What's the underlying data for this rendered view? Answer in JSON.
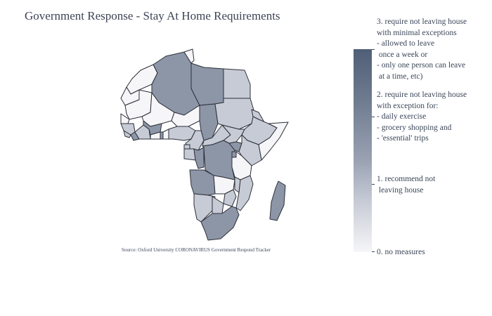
{
  "title": "Government Response - Stay At Home Requirements",
  "source": "Source:  Oxford University CORONAVIRUS Government Respond Tracker",
  "colorscale": [
    "#f6f6f8",
    "#c7cbd6",
    "#8d96a7",
    "#4f5f77"
  ],
  "legend": {
    "level3": "3. require not leaving house\nwith minimal exceptions\n- allowed to leave\n once a week or\n- only one person can leave\n at a time, etc)",
    "level2": "2. require not leaving house\nwith exception for:\n- daily exercise\n- grocery shopping and\n- 'essential' trips",
    "level1": "1. recommend not\n leaving house",
    "level0": "0. no measures"
  },
  "chart_data": {
    "type": "choropleth",
    "title": "Government Response - Stay At Home Requirements",
    "scale": [
      0,
      3
    ],
    "regions": [
      {
        "id": "morocco",
        "value": 0
      },
      {
        "id": "western-sahara",
        "value": 0
      },
      {
        "id": "algeria",
        "value": 2
      },
      {
        "id": "tunisia",
        "value": 0
      },
      {
        "id": "libya",
        "value": 2
      },
      {
        "id": "egypt",
        "value": 1
      },
      {
        "id": "mauritania",
        "value": 0
      },
      {
        "id": "mali",
        "value": 0
      },
      {
        "id": "niger",
        "value": 0
      },
      {
        "id": "chad",
        "value": 2
      },
      {
        "id": "sudan",
        "value": 1
      },
      {
        "id": "eritrea",
        "value": 1
      },
      {
        "id": "ethiopia",
        "value": 1
      },
      {
        "id": "somalia",
        "value": 0
      },
      {
        "id": "senegal",
        "value": 0
      },
      {
        "id": "guinea",
        "value": 1
      },
      {
        "id": "sierra-leone",
        "value": 1
      },
      {
        "id": "liberia",
        "value": 2
      },
      {
        "id": "cote-divoire",
        "value": 1
      },
      {
        "id": "burkina-faso",
        "value": 2
      },
      {
        "id": "ghana",
        "value": 0
      },
      {
        "id": "togo",
        "value": 2
      },
      {
        "id": "benin",
        "value": 0
      },
      {
        "id": "nigeria",
        "value": 1
      },
      {
        "id": "cameroon",
        "value": 1
      },
      {
        "id": "central-african-republic",
        "value": 1
      },
      {
        "id": "south-sudan",
        "value": 1
      },
      {
        "id": "equatorial-guinea",
        "value": 1
      },
      {
        "id": "gabon",
        "value": 1
      },
      {
        "id": "congo",
        "value": 2
      },
      {
        "id": "dr-congo",
        "value": 2
      },
      {
        "id": "uganda",
        "value": 2
      },
      {
        "id": "kenya",
        "value": 1
      },
      {
        "id": "rwanda",
        "value": 2
      },
      {
        "id": "tanzania",
        "value": 0
      },
      {
        "id": "angola",
        "value": 2
      },
      {
        "id": "zambia",
        "value": 0
      },
      {
        "id": "malawi",
        "value": 1
      },
      {
        "id": "mozambique",
        "value": 1
      },
      {
        "id": "zimbabwe",
        "value": 1
      },
      {
        "id": "namibia",
        "value": 1
      },
      {
        "id": "botswana",
        "value": 1
      },
      {
        "id": "south-africa",
        "value": 2
      },
      {
        "id": "madagascar",
        "value": 2
      }
    ]
  }
}
